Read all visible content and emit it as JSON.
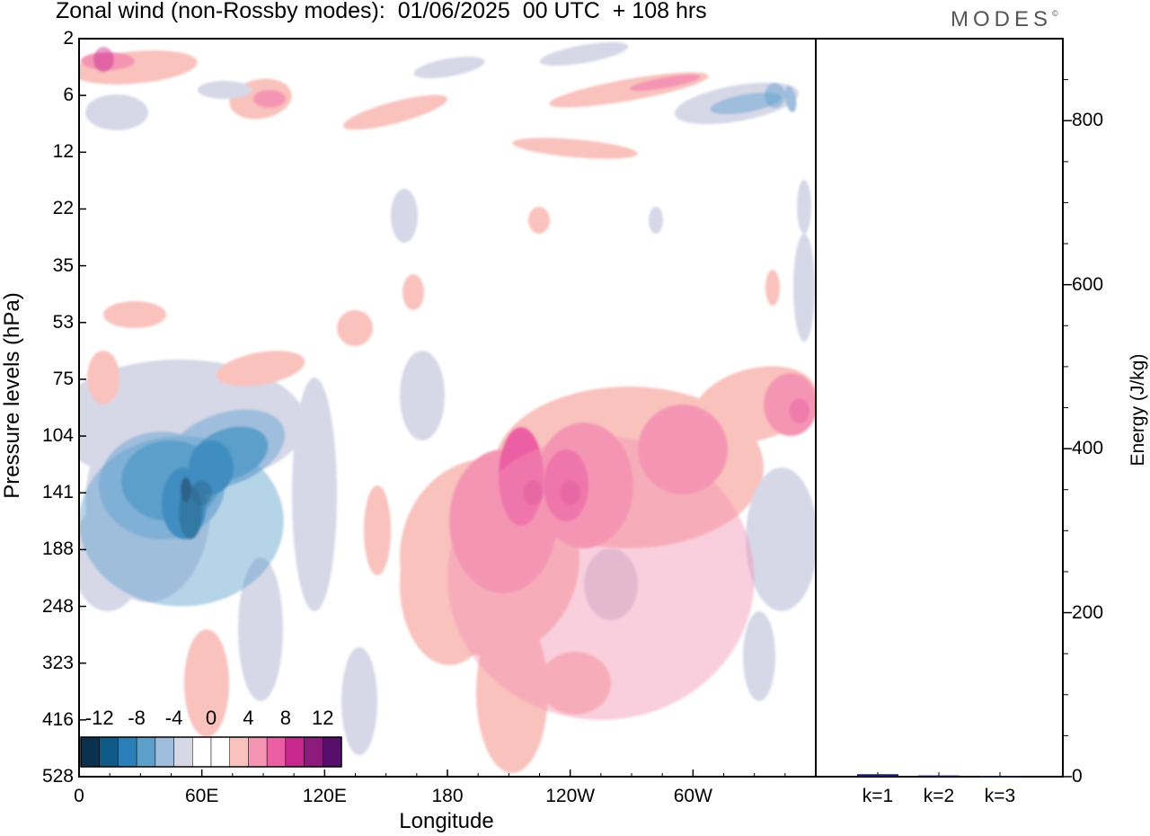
{
  "title": "Zonal wind (non-Rossby modes):  01/06/2025  00 UTC  + 108 hrs",
  "brand": {
    "name": "MODES",
    "mark": "©"
  },
  "chart_data": [
    {
      "type": "heatmap",
      "title": "Zonal wind (non-Rossby modes):  01/06/2025  00 UTC  + 108 hrs",
      "xlabel": "Longitude",
      "ylabel": "Pressure levels (hPa)",
      "x_ticks": [
        "0",
        "60E",
        "120E",
        "180",
        "120W",
        "60W"
      ],
      "y_ticks": [
        "2",
        "6",
        "12",
        "22",
        "35",
        "53",
        "75",
        "104",
        "141",
        "188",
        "248",
        "323",
        "416",
        "528"
      ],
      "colorbar": {
        "tick_labels": [
          "-12",
          "-8",
          "-4",
          "0",
          "4",
          "8",
          "12"
        ],
        "levels": [
          -14,
          -12,
          -10,
          -8,
          -6,
          -4,
          -2,
          0,
          2,
          4,
          6,
          8,
          10,
          12,
          14
        ],
        "colors": [
          "#0b3150",
          "#0f5a86",
          "#2a7fb8",
          "#5c9fcb",
          "#9fbddc",
          "#d6d8e8",
          "#ffffff",
          "#ffffff",
          "#f9c2bd",
          "#f595b4",
          "#ec5ea4",
          "#c8278d",
          "#8c1b7c",
          "#56106c"
        ]
      },
      "features": [
        {
          "name": "easterly core",
          "lon": 60,
          "level": 141,
          "value": -14
        },
        {
          "name": "easterly band",
          "lon": [
            0,
            100
          ],
          "level": [
            104,
            248
          ],
          "value": -6
        },
        {
          "name": "westerly core",
          "lon": 222,
          "level": 141,
          "value": 8
        },
        {
          "name": "westerly core",
          "lon": 240,
          "level": 141,
          "value": 8
        },
        {
          "name": "westerly band",
          "lon": [
            180,
            330
          ],
          "level": [
            104,
            416
          ],
          "value": 4
        },
        {
          "name": "westerly",
          "lon": 352,
          "level": 90,
          "value": 6
        },
        {
          "name": "stratospheric westerly",
          "lon": 12,
          "level": 3,
          "value": 8
        },
        {
          "name": "stratospheric easterly",
          "lon": 340,
          "level": 6,
          "value": -6
        }
      ],
      "colors": {
        "negative": "#2a7fb8",
        "positive": "#ec5ea4"
      }
    },
    {
      "type": "bar",
      "ylabel": "Energy (J/kg)",
      "ylim": [
        0,
        900
      ],
      "y_ticks": [
        "0",
        "200",
        "400",
        "600",
        "800"
      ],
      "categories": [
        "k=1",
        "k=2",
        "k=3"
      ],
      "values": [
        3,
        1.5,
        1
      ],
      "color": "#1a1a6e"
    }
  ]
}
